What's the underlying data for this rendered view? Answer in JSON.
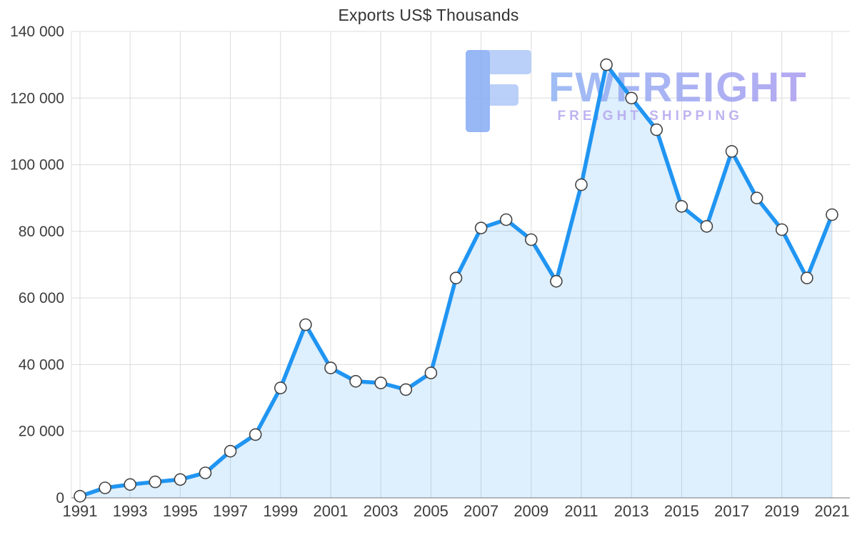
{
  "title": "Exports US$ Thousands",
  "watermark": {
    "brand": "FWFREIGHT",
    "tagline": "FREIGHT SHIPPING"
  },
  "colors": {
    "line": "#2095f2",
    "area_fill": "#2196f3",
    "area_fill_opacity": "0.15",
    "marker_fill": "#ffffff",
    "marker_stroke": "#444444",
    "grid": "#dcdcdc",
    "axis_line": "#909090",
    "axis_text": "#3d3d3d",
    "title_text": "#333333",
    "watermark_icon_main": "#86abf4",
    "watermark_icon_light": "#b0c8f8",
    "watermark_grad_start": "#8fb2f4",
    "watermark_grad_end": "#a89bf0",
    "watermark_tagline": "#b4a6ef"
  },
  "chart_data": {
    "type": "line",
    "title": "Exports US$ Thousands",
    "xlabel": "",
    "ylabel": "",
    "x": [
      1991,
      1992,
      1993,
      1994,
      1995,
      1996,
      1997,
      1998,
      1999,
      2000,
      2001,
      2002,
      2003,
      2004,
      2005,
      2006,
      2007,
      2008,
      2009,
      2010,
      2011,
      2012,
      2013,
      2014,
      2015,
      2016,
      2017,
      2018,
      2019,
      2020,
      2021
    ],
    "values": [
      500,
      3000,
      4000,
      4800,
      5500,
      7500,
      14000,
      19000,
      33000,
      52000,
      39000,
      35000,
      34500,
      32500,
      37500,
      66000,
      81000,
      83500,
      77500,
      65000,
      94000,
      130000,
      120000,
      110500,
      87500,
      81500,
      104000,
      90000,
      80500,
      66000,
      85000
    ],
    "ylim": [
      0,
      140000
    ],
    "y_tick_values": [
      0,
      20000,
      40000,
      60000,
      80000,
      100000,
      120000,
      140000
    ],
    "y_tick_labels": [
      "0",
      "20 000",
      "40 000",
      "60 000",
      "80 000",
      "100 000",
      "120 000",
      "140 000"
    ],
    "x_tick_labels": [
      "1991",
      "1993",
      "1995",
      "1997",
      "1999",
      "2001",
      "2003",
      "2005",
      "2007",
      "2009",
      "2011",
      "2013",
      "2015",
      "2017",
      "2019",
      "2021"
    ],
    "grid": true,
    "legend_position": "none",
    "area_fill": true,
    "marker": "circle"
  }
}
